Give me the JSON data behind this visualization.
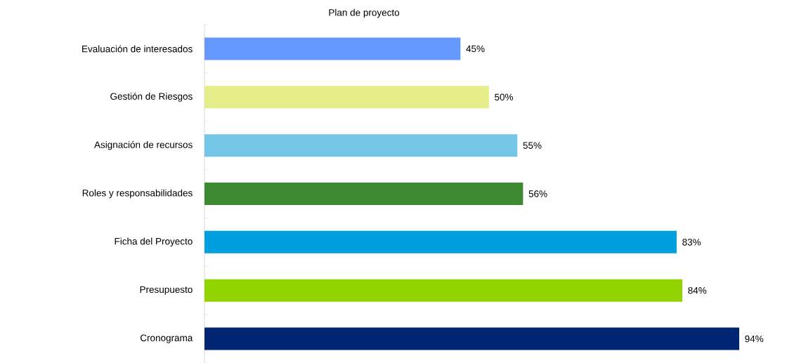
{
  "chart_data": {
    "type": "bar",
    "orientation": "horizontal",
    "title": "Plan de proyecto",
    "categories": [
      "Evaluación de interesados",
      "Gestión de Riesgos",
      "Asignación de recursos",
      "Roles y responsabilidades",
      "Ficha del Proyecto",
      "Presupuesto",
      "Cronograma"
    ],
    "values": [
      45,
      50,
      55,
      56,
      83,
      84,
      94
    ],
    "colors": [
      "#6699ff",
      "#e6ee8a",
      "#73c6e6",
      "#3d8a33",
      "#00a0e0",
      "#92d400",
      "#002673"
    ],
    "value_labels": [
      "45%",
      "50%",
      "55%",
      "56%",
      "83%",
      "84%",
      "94%"
    ],
    "grid": false
  }
}
